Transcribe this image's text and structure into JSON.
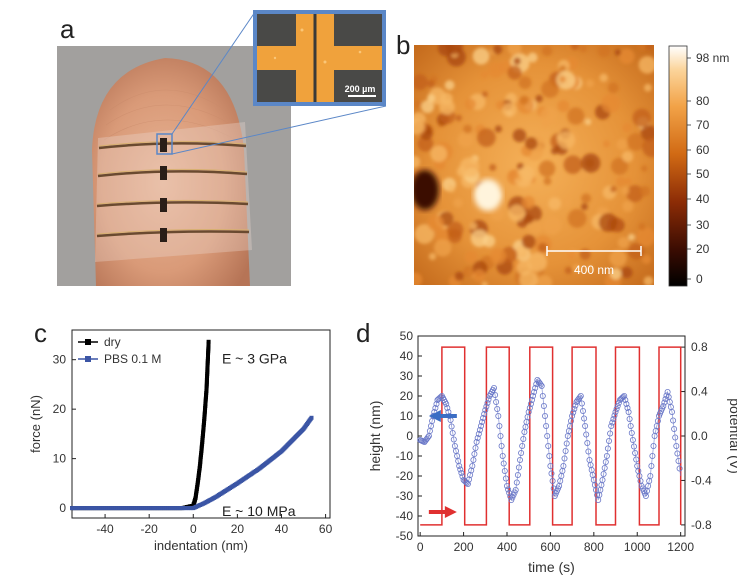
{
  "panels": {
    "a": {
      "letter": "a",
      "scale_bar_label": "200 µm"
    },
    "b": {
      "letter": "b",
      "scale_bar_label": "400 nm",
      "colorbar_ticks": [
        "98 nm",
        "80",
        "70",
        "60",
        "50",
        "40",
        "30",
        "20",
        "0"
      ]
    },
    "c": {
      "letter": "c"
    },
    "d": {
      "letter": "d"
    }
  },
  "colors": {
    "black_series": "#000000",
    "blue_series": "#3b55a5",
    "red_series": "#e03030",
    "open_marker": "#6a78c8",
    "arrow_blue": "#3b6dc4",
    "arrow_red": "#e03030"
  },
  "chart_data": [
    {
      "type": "scatter",
      "panel": "c",
      "xlabel": "indentation (nm)",
      "ylabel": "force (nN)",
      "xlim": [
        -55,
        62
      ],
      "ylim": [
        -2,
        36
      ],
      "xticks": [
        -40,
        -20,
        0,
        20,
        40,
        60
      ],
      "yticks": [
        0,
        10,
        20,
        30
      ],
      "annotations": [
        "E ~ 3 GPa",
        "E ~ 10 MPa"
      ],
      "legend": {
        "position": "top-left",
        "entries": [
          "dry",
          "PBS 0.1 M"
        ]
      },
      "series": [
        {
          "name": "dry",
          "color": "#000000",
          "x": [
            -55,
            -40,
            -20,
            -5,
            0,
            1,
            2,
            3,
            4,
            5,
            6,
            6.5,
            7
          ],
          "y": [
            0,
            0,
            0,
            0,
            0.5,
            2,
            5,
            8.5,
            13,
            18,
            24,
            29,
            34
          ]
        },
        {
          "name": "PBS 0.1 M",
          "color": "#3b55a5",
          "x": [
            -55,
            -40,
            -20,
            -5,
            0,
            5,
            10,
            20,
            30,
            40,
            50,
            54
          ],
          "y": [
            0,
            0,
            0,
            0,
            0,
            1,
            2.2,
            5,
            8,
            11.5,
            16,
            18.5
          ]
        }
      ]
    },
    {
      "type": "line",
      "panel": "d",
      "xlabel": "time (s)",
      "ylabel": "height (nm)",
      "y2label": "potential (V)",
      "xlim": [
        -10,
        1220
      ],
      "ylim": [
        -50,
        50
      ],
      "y2lim": [
        -0.9,
        0.9
      ],
      "xticks": [
        0,
        200,
        400,
        600,
        800,
        1000,
        1200
      ],
      "yticks": [
        -50,
        -40,
        -30,
        -20,
        -10,
        0,
        10,
        20,
        30,
        40,
        50
      ],
      "y2ticks": [
        -0.8,
        -0.4,
        0.0,
        0.4,
        0.8
      ],
      "series": [
        {
          "name": "",
          "color": "#e03030",
          "axis": "right",
          "x": [
            0,
            5,
            5,
            100,
            100,
            205,
            205,
            305,
            305,
            410,
            410,
            505,
            505,
            610,
            610,
            700,
            700,
            810,
            810,
            900,
            900,
            1010,
            1010,
            1100,
            1100,
            1200,
            1200
          ],
          "y": [
            -0.8,
            -0.8,
            -0.8,
            -0.8,
            0.8,
            0.8,
            -0.8,
            -0.8,
            0.8,
            0.8,
            -0.8,
            -0.8,
            0.8,
            0.8,
            -0.8,
            -0.8,
            0.8,
            0.8,
            -0.8,
            -0.8,
            0.8,
            0.8,
            -0.8,
            -0.8,
            0.8,
            0.8,
            -0.8
          ]
        },
        {
          "name": "",
          "color": "#6a78c8",
          "axis": "left",
          "marker": "open-circle",
          "x": [
            0,
            20,
            40,
            60,
            80,
            100,
            120,
            140,
            160,
            180,
            200,
            220,
            240,
            260,
            280,
            300,
            320,
            340,
            360,
            380,
            400,
            420,
            440,
            460,
            480,
            500,
            520,
            540,
            560,
            580,
            600,
            620,
            640,
            660,
            680,
            700,
            720,
            740,
            760,
            780,
            800,
            820,
            840,
            860,
            880,
            900,
            920,
            940,
            960,
            980,
            1000,
            1020,
            1040,
            1060,
            1080,
            1100,
            1120,
            1140,
            1160,
            1180,
            1200
          ],
          "y": [
            -2,
            -3,
            0,
            10,
            18,
            20,
            16,
            8,
            -5,
            -15,
            -22,
            -24,
            -15,
            -3,
            5,
            13,
            20,
            24,
            10,
            -10,
            -25,
            -32,
            -27,
            -12,
            2,
            12,
            20,
            28,
            25,
            5,
            -15,
            -30,
            -25,
            -15,
            0,
            10,
            17,
            20,
            5,
            -12,
            -22,
            -32,
            -22,
            -10,
            5,
            12,
            18,
            20,
            12,
            -2,
            -15,
            -25,
            -30,
            -20,
            0,
            10,
            15,
            22,
            12,
            -5,
            -20
          ]
        }
      ],
      "arrows": [
        {
          "direction": "left",
          "color": "#3b6dc4"
        },
        {
          "direction": "right",
          "color": "#e03030"
        }
      ]
    }
  ]
}
